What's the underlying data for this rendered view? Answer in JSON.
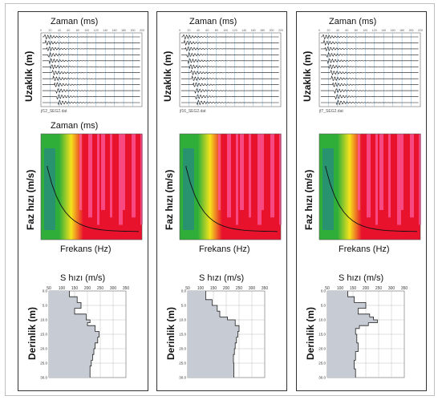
{
  "chart_data": [
    {
      "type": "other",
      "panel": "A",
      "seismogram": {
        "title": "Zaman (ms)",
        "ylabel": "Uzaklık (m)",
        "file": "jf12_SEG2.dat",
        "xticks": [
          "0",
          "20",
          "40",
          "60",
          "80",
          "100",
          "120",
          "140",
          "160",
          "180",
          "200",
          "220"
        ],
        "traces": 12
      },
      "dispersion": {
        "title": "Zaman (ms)",
        "ylabel": "Faz hızı (m/s)",
        "xlabel": "Frekans (Hz)",
        "colors": [
          "#2fae3a",
          "#f5e31c",
          "#e8122c",
          "#ff5fa5"
        ]
      },
      "vs_profile": {
        "title": "S hızı (m/s)",
        "ylabel": "Derinlik (m)",
        "xlim": [
          50,
          350
        ],
        "ylim": [
          0,
          30
        ],
        "xticks": [
          "50",
          "100",
          "150",
          "200",
          "250",
          "300",
          "350"
        ],
        "yticks": [
          "0.0",
          "5.0",
          "10.0",
          "15.0",
          "20.0",
          "25.0",
          "30.0"
        ],
        "depth": [
          0,
          2,
          4,
          6,
          8,
          10,
          11,
          12,
          14,
          16,
          18,
          20,
          22,
          24,
          26,
          30
        ],
        "vs": [
          130,
          160,
          175,
          150,
          195,
          210,
          200,
          230,
          245,
          240,
          230,
          225,
          220,
          215,
          210,
          210
        ]
      }
    },
    {
      "type": "other",
      "panel": "B",
      "seismogram": {
        "title": "Zaman (ms)",
        "ylabel": "Uzaklık (m)",
        "file": "jf16_SEG2.dat",
        "xticks": [
          "0",
          "20",
          "40",
          "60",
          "80",
          "100",
          "120",
          "140",
          "160",
          "180",
          "200",
          "220"
        ],
        "traces": 12
      },
      "dispersion": {
        "title": "",
        "ylabel": "Faz hızı (m/s)",
        "xlabel": "Frekans (Hz)",
        "colors": [
          "#2fae3a",
          "#f5e31c",
          "#e8122c",
          "#ff5fa5"
        ]
      },
      "vs_profile": {
        "title": "S hızı (m/s)",
        "ylabel": "Derinlik (m)",
        "xlim": [
          50,
          350
        ],
        "ylim": [
          0,
          30
        ],
        "xticks": [
          "50",
          "100",
          "150",
          "200",
          "250",
          "300",
          "350"
        ],
        "yticks": [
          "0.0",
          "5.0",
          "10.0",
          "15.0",
          "20.0",
          "25.0",
          "30.0"
        ],
        "depth": [
          0,
          3,
          5,
          7,
          9,
          10,
          12,
          14,
          16,
          18,
          20,
          22,
          25,
          30
        ],
        "vs": [
          120,
          145,
          165,
          175,
          205,
          235,
          250,
          245,
          240,
          235,
          232,
          228,
          230,
          230
        ]
      }
    },
    {
      "type": "other",
      "panel": "C",
      "seismogram": {
        "title": "Zaman (ms)",
        "ylabel": "Uzaklık (m)",
        "file": "jf7_SEG2.dat",
        "xticks": [
          "0",
          "20",
          "40",
          "60",
          "80",
          "100",
          "120",
          "140",
          "160",
          "180",
          "200",
          "220"
        ],
        "traces": 12
      },
      "dispersion": {
        "title": "",
        "ylabel": "Faz hızı (m/s)",
        "xlabel": "Frekans (Hz)",
        "colors": [
          "#2fae3a",
          "#f5e31c",
          "#e8122c",
          "#ff5fa5"
        ]
      },
      "vs_profile": {
        "title": "S hızı (m/s)",
        "ylabel": "Derinlik (m)",
        "xlim": [
          50,
          350
        ],
        "ylim": [
          0,
          30
        ],
        "xticks": [
          "50",
          "100",
          "150",
          "200",
          "250",
          "300",
          "350"
        ],
        "yticks": [
          "0.0",
          "5.0",
          "10.0",
          "15.0",
          "20.0",
          "25.0",
          "30.0"
        ],
        "depth": [
          0,
          2,
          4,
          6,
          8,
          9,
          10,
          11,
          12,
          13,
          15,
          18,
          21,
          24,
          27,
          30
        ],
        "vs": [
          130,
          155,
          200,
          170,
          215,
          230,
          245,
          210,
          175,
          160,
          165,
          170,
          160,
          155,
          160,
          160
        ]
      }
    }
  ]
}
